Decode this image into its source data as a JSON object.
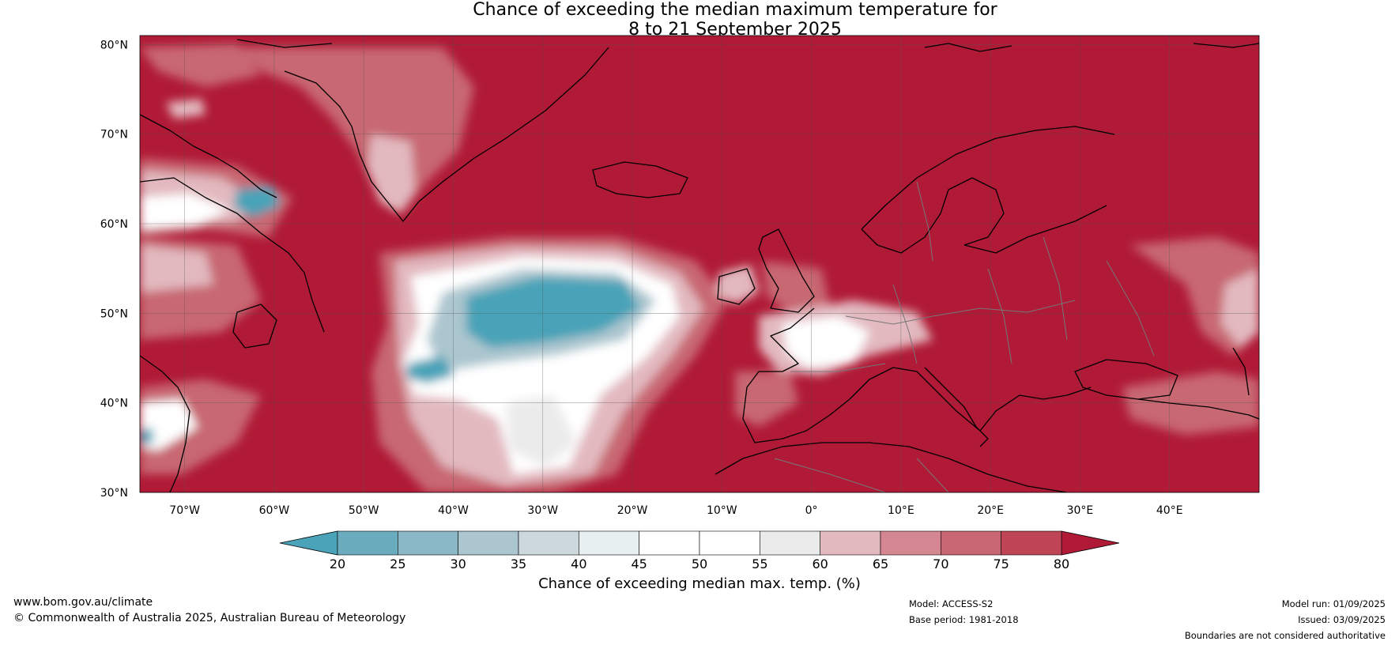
{
  "title": {
    "line1": "Chance of exceeding the median maximum temperature for",
    "line2": "8 to 21 September 2025"
  },
  "map": {
    "lat_labels": [
      "80°N",
      "70°N",
      "60°N",
      "50°N",
      "40°N",
      "30°N"
    ],
    "lon_labels": [
      "70°W",
      "60°W",
      "50°W",
      "40°W",
      "30°W",
      "20°W",
      "10°W",
      "0°",
      "10°E",
      "20°E",
      "30°E",
      "40°E"
    ],
    "lat_values": [
      80,
      70,
      60,
      50,
      40,
      30
    ],
    "lon_values": [
      -70,
      -60,
      -50,
      -40,
      -30,
      -20,
      -10,
      0,
      10,
      20,
      30,
      40
    ],
    "lon_range": [
      -75,
      50
    ],
    "lat_range": [
      30,
      81
    ]
  },
  "colorbar": {
    "label": "Chance of exceeding median max. temp. (%)",
    "ticks": [
      "20",
      "25",
      "30",
      "35",
      "40",
      "45",
      "50",
      "55",
      "60",
      "65",
      "70",
      "75",
      "80"
    ],
    "low_color": "#4aa3b8",
    "high_color": "#b01a36",
    "colors": [
      "#6aacbd",
      "#8bb8c6",
      "#acc6cf",
      "#cdd8dc",
      "#e8eff1",
      "#ffffff",
      "#ffffff",
      "#ecebec",
      "#e2b9bf",
      "#d48791",
      "#c86772",
      "#be4456"
    ]
  },
  "colors": {
    "high": "#b01a36",
    "warm": "#c86772",
    "mild": "#e2b9bf",
    "neutral": "#ffffff",
    "grey": "#ecebec",
    "cool": "#acc6cf",
    "cold": "#4aa3b8"
  },
  "footer": {
    "website": "www.bom.gov.au/climate",
    "copyright": "© Commonwealth of Australia 2025, Australian Bureau of Meteorology",
    "model": "Model: ACCESS-S2",
    "base_period": "Base period: 1981-2018",
    "model_run": "Model run: 01/09/2025",
    "issued": "Issued: 03/09/2025",
    "disclaimer": "Boundaries are not considered authoritative"
  }
}
